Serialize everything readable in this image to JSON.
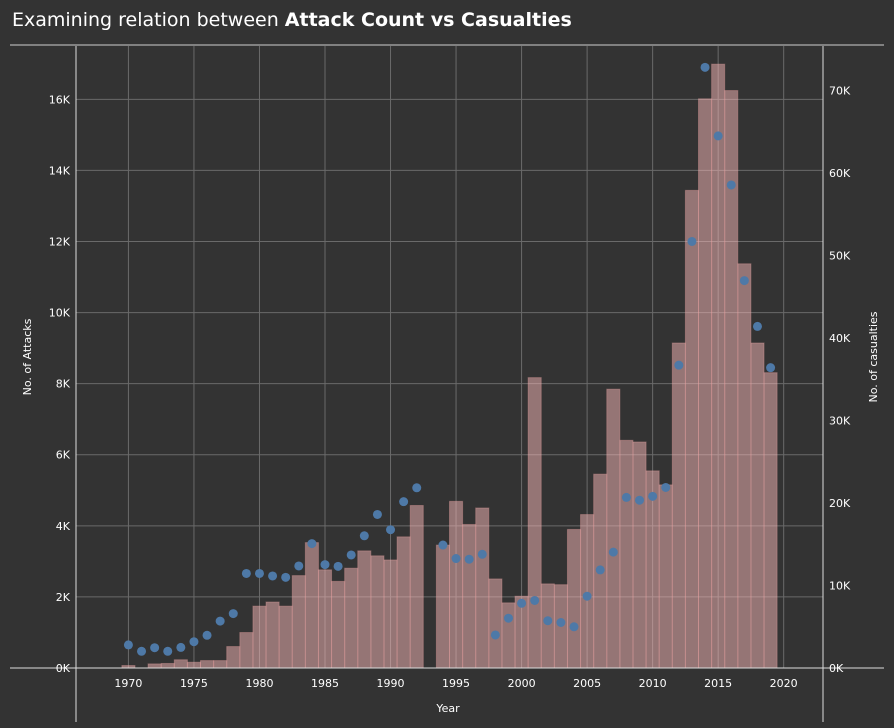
{
  "title": {
    "prefix": "Examining relation between ",
    "bold": "Attack Count vs Casualties"
  },
  "colors": {
    "background": "#333333",
    "bar": "#f8b8b8",
    "bar_opacity": 0.5,
    "bar_border": "#e9a0a0",
    "dot": "#4e79a7",
    "grid": "#6a6a6a",
    "axis": "#dddddd"
  },
  "chart_data": {
    "type": "bar",
    "xlabel": "Year",
    "ylabel": "No. of Attacks",
    "y2label": "No. of casualties",
    "xlim": [
      1966,
      2023
    ],
    "ylim": [
      0,
      17500
    ],
    "y2lim": [
      0,
      75400
    ],
    "xticks": [
      1970,
      1975,
      1980,
      1985,
      1990,
      1995,
      2000,
      2005,
      2010,
      2015,
      2020
    ],
    "yticks": [
      0,
      2000,
      4000,
      6000,
      8000,
      10000,
      12000,
      14000,
      16000
    ],
    "ytick_labels": [
      "0K",
      "2K",
      "4K",
      "6K",
      "8K",
      "10K",
      "12K",
      "14K",
      "16K"
    ],
    "y2ticks": [
      0,
      10000,
      20000,
      30000,
      40000,
      50000,
      60000,
      70000
    ],
    "y2tick_labels": [
      "0K",
      "10K",
      "20K",
      "30K",
      "40K",
      "50K",
      "60K",
      "70K"
    ],
    "series": [
      {
        "name": "No. of Attacks",
        "type": "bar",
        "axis": "left",
        "x": [
          1970,
          1971,
          1972,
          1973,
          1974,
          1975,
          1976,
          1977,
          1978,
          1979,
          1980,
          1981,
          1982,
          1983,
          1984,
          1985,
          1986,
          1987,
          1988,
          1989,
          1990,
          1991,
          1992,
          1994,
          1995,
          1996,
          1997,
          1998,
          1999,
          2000,
          2001,
          2002,
          2003,
          2004,
          2005,
          2006,
          2007,
          2008,
          2009,
          2010,
          2011,
          2012,
          2013,
          2014,
          2015,
          2016,
          2017,
          2018,
          2019
        ],
        "values": [
          650,
          470,
          570,
          470,
          580,
          740,
          920,
          1320,
          1530,
          2660,
          2660,
          2590,
          2550,
          2870,
          3500,
          2910,
          2860,
          3180,
          3720,
          4320,
          3890,
          4680,
          5070,
          3460,
          3080,
          3060,
          3200,
          930,
          1400,
          1820,
          1900,
          1330,
          1280,
          1160,
          2020,
          2760,
          3260,
          4800,
          4720,
          4830,
          5080,
          8520,
          12000,
          16900,
          14970,
          13590,
          10900,
          9610,
          8450
        ]
      },
      {
        "name": "No. of casualties",
        "type": "dot",
        "axis": "right",
        "x": [
          1970,
          1971,
          1972,
          1973,
          1974,
          1975,
          1976,
          1977,
          1978,
          1979,
          1980,
          1981,
          1982,
          1983,
          1984,
          1985,
          1986,
          1987,
          1988,
          1989,
          1990,
          1991,
          1992,
          1994,
          1995,
          1996,
          1997,
          1998,
          1999,
          2000,
          2001,
          2002,
          2003,
          2004,
          2005,
          2006,
          2007,
          2008,
          2009,
          2010,
          2011,
          2012,
          2013,
          2014,
          2015,
          2016,
          2017,
          2018,
          2019
        ],
        "values": [
          300,
          0,
          500,
          550,
          1000,
          700,
          900,
          900,
          2600,
          4300,
          7500,
          8000,
          7500,
          11200,
          15200,
          11900,
          10500,
          12100,
          14200,
          13600,
          13100,
          15900,
          19700,
          14900,
          20200,
          17400,
          19400,
          10800,
          7900,
          8700,
          35200,
          10200,
          10100,
          16800,
          18600,
          23500,
          33800,
          27600,
          27400,
          23900,
          22200,
          39400,
          57900,
          69000,
          73200,
          70000,
          49000,
          39400,
          35800
        ]
      }
    ],
    "grid": true,
    "legend": "none"
  }
}
